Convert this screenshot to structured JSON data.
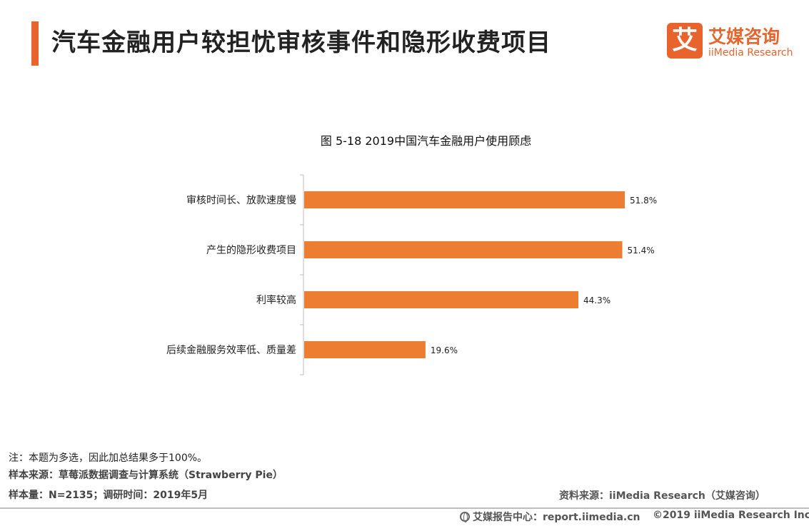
{
  "header": {
    "title": "汽车金融用户较担忧审核事件和隐形收费项目",
    "accent_color": "#e8642c"
  },
  "logo": {
    "mark": "艾",
    "cn": "艾媒咨询",
    "en": "iiMedia Research",
    "color": "#e8642c"
  },
  "chart_title": "图 5-18  2019中国汽车金融用户使用顾虑",
  "chart_data": {
    "type": "bar",
    "orientation": "horizontal",
    "categories": [
      "审核时间长、放款速度慢",
      "产生的隐形收费项目",
      "利率较高",
      "后续金融服务效率低、质量差"
    ],
    "values": [
      51.8,
      51.4,
      44.3,
      19.6
    ],
    "value_labels": [
      "51.8%",
      "51.4%",
      "44.3%",
      "19.6%"
    ],
    "bar_color": "#ed7d31",
    "xlim": [
      0,
      60
    ],
    "grid": false
  },
  "notes": {
    "note": "注：本题为多选，因此加总结果多于100%。",
    "sample_source": "样本来源：草莓派数据调查与计算系统（Strawberry Pie）",
    "sample_size": "样本量：N=2135；调研时间：2019年5月"
  },
  "source": "资料来源：iiMedia Research（艾媒咨询）",
  "footer": {
    "site": "艾媒报告中心：report.iimedia.cn",
    "copyright": "©2019  iiMedia Research  Inc"
  }
}
